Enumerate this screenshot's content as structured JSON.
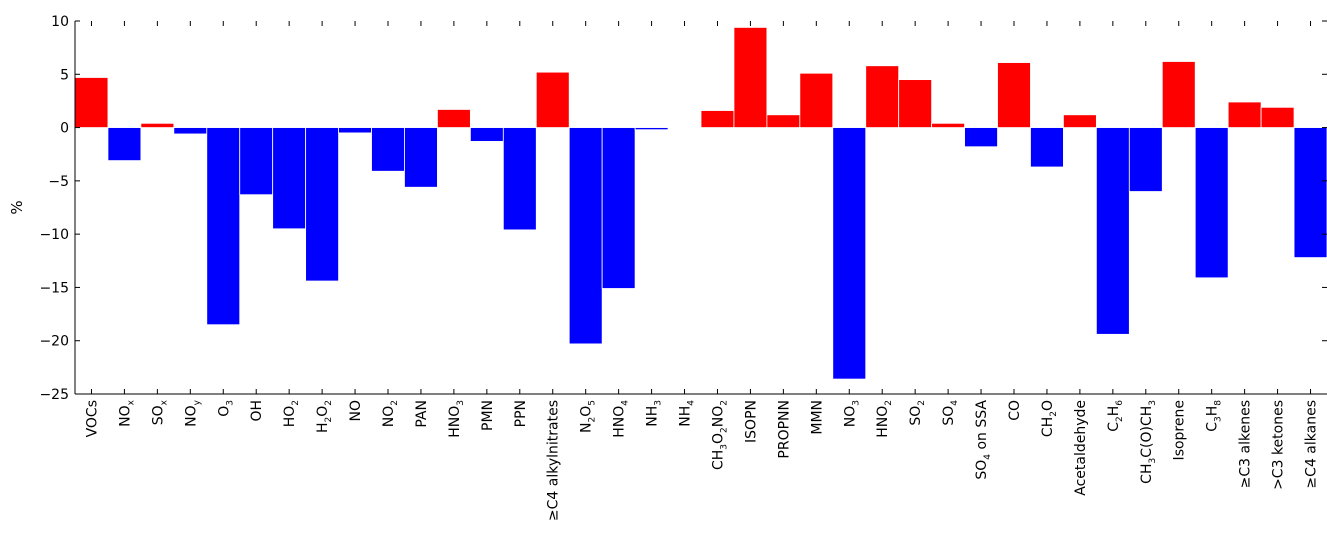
{
  "chart_data": {
    "type": "bar",
    "ylabel": "%",
    "ylim": [
      -25,
      10
    ],
    "yticks": [
      10,
      5,
      0,
      -5,
      -10,
      -15,
      -20,
      -25
    ],
    "ytick_labels": [
      "10",
      "5",
      "0",
      "−5",
      "−10",
      "−15",
      "−20",
      "−25"
    ],
    "grid": false,
    "positive_color": "#ff0000",
    "negative_color": "#0000ff",
    "categories": [
      "VOCs",
      {
        "base": "NO",
        "sub": "x"
      },
      {
        "base": "SO",
        "sub": "x"
      },
      {
        "base": "NO",
        "sub": "y"
      },
      {
        "base": "O",
        "sub": "3"
      },
      "OH",
      {
        "base": "HO",
        "sub": "2"
      },
      [
        {
          "t": "H"
        },
        {
          "s": "2"
        },
        {
          "t": "O"
        },
        {
          "s": "2"
        }
      ],
      "NO",
      {
        "base": "NO",
        "sub": "2"
      },
      "PAN",
      {
        "base": "HNO",
        "sub": "3"
      },
      "PMN",
      "PPN",
      "≥C4 alkylnitrates",
      [
        {
          "t": "N"
        },
        {
          "s": "2"
        },
        {
          "t": "O"
        },
        {
          "s": "5"
        }
      ],
      {
        "base": "HNO",
        "sub": "4"
      },
      {
        "base": "NH",
        "sub": "3"
      },
      {
        "base": "NH",
        "sub": "4"
      },
      [
        {
          "t": "CH"
        },
        {
          "s": "3"
        },
        {
          "t": "O"
        },
        {
          "s": "2"
        },
        {
          "t": "NO"
        },
        {
          "s": "2"
        }
      ],
      "ISOPN",
      "PROPNN",
      "MMN",
      {
        "base": "NO",
        "sub": "3"
      },
      {
        "base": "HNO",
        "sub": "2"
      },
      {
        "base": "SO",
        "sub": "2"
      },
      {
        "base": "SO",
        "sub": "4"
      },
      [
        {
          "t": "SO"
        },
        {
          "s": "4"
        },
        {
          "t": " on SSA"
        }
      ],
      "CO",
      {
        "base": "CH",
        "sub": "2",
        "tail": "O"
      },
      "Acetaldehyde",
      [
        {
          "t": "C"
        },
        {
          "s": "2"
        },
        {
          "t": "H"
        },
        {
          "s": "6"
        }
      ],
      [
        {
          "t": "CH"
        },
        {
          "s": "3"
        },
        {
          "t": "C(O)CH"
        },
        {
          "s": "3"
        }
      ],
      "Isoprene",
      [
        {
          "t": "C"
        },
        {
          "s": "3"
        },
        {
          "t": "H"
        },
        {
          "s": "8"
        }
      ],
      "≥C3 alkenes",
      ">C3 ketones",
      "≥C4 alkanes"
    ],
    "values": [
      4.7,
      -3.1,
      0.4,
      -0.6,
      -18.5,
      -6.3,
      -9.5,
      -14.4,
      -0.5,
      -4.1,
      -5.6,
      1.7,
      -1.3,
      -9.6,
      5.2,
      -20.3,
      -15.1,
      -0.2,
      0.0,
      1.6,
      9.4,
      1.2,
      5.1,
      -23.6,
      5.8,
      4.5,
      0.4,
      -1.8,
      6.1,
      -3.7,
      1.2,
      -19.4,
      -6.0,
      6.2,
      -14.1,
      2.4,
      1.9,
      -12.2
    ]
  }
}
